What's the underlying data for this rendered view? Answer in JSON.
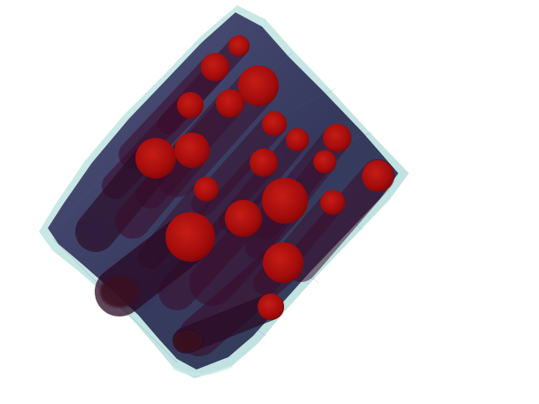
{
  "scene": {
    "subject": "fiber-bundle-volume-render",
    "background_color": "#ffffff",
    "volume_fill_color": "#2a2a52",
    "volume_edge_color": "#a9d9d6",
    "fiber_body_color": "#3a0b2a",
    "fiber_cap_color": "#a30c0c",
    "fiber_cap_highlight": "#c21a14",
    "fiber_count": 22
  }
}
